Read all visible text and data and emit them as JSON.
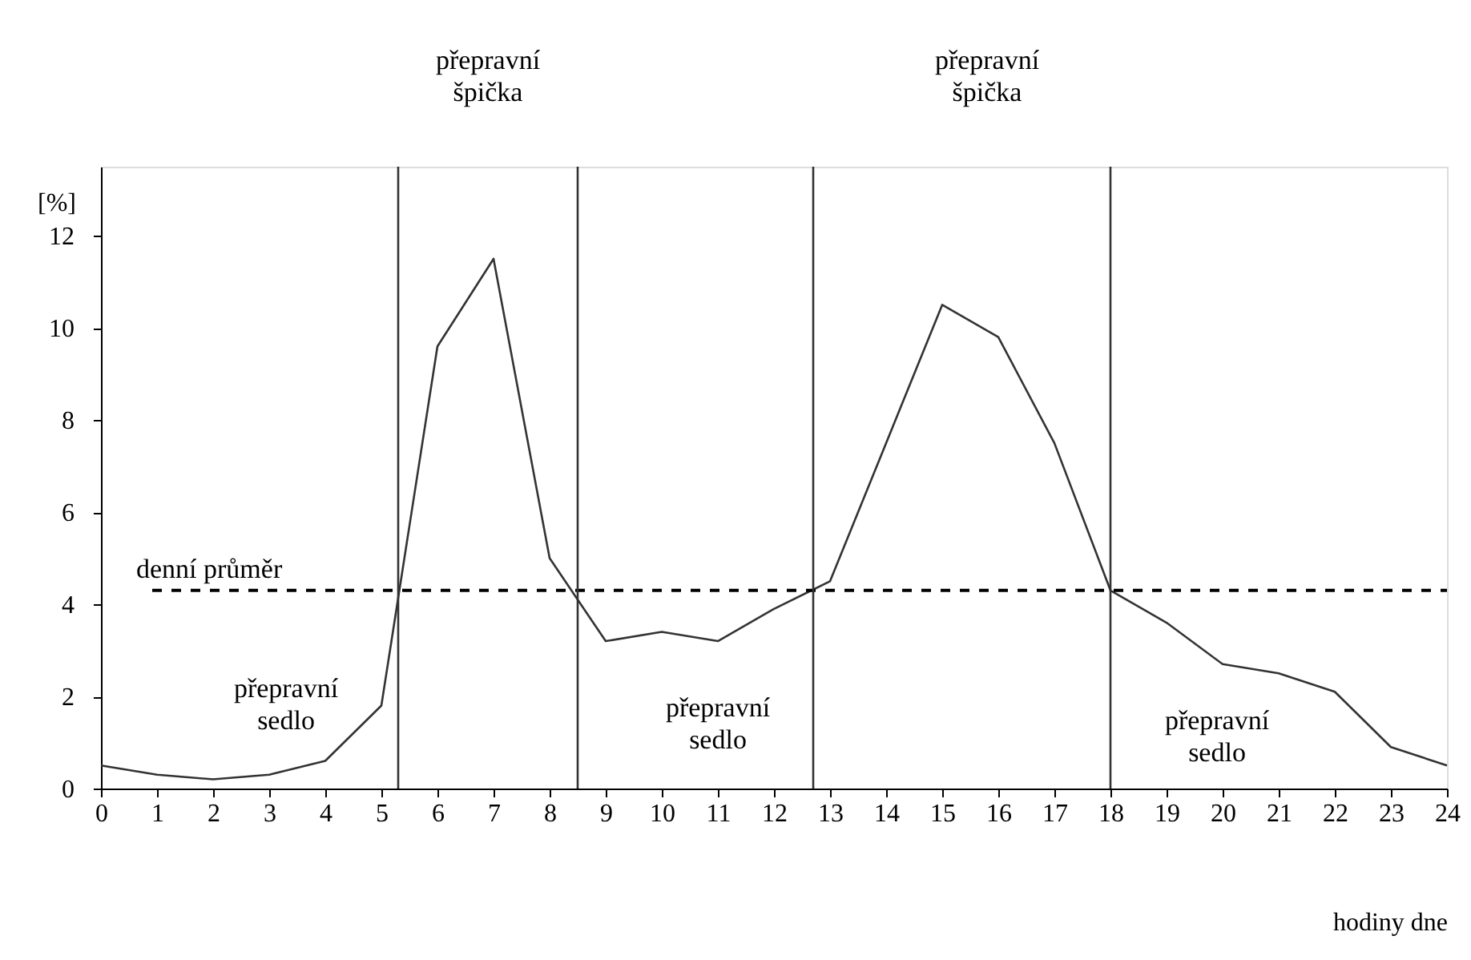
{
  "chart_data": {
    "type": "line",
    "x": [
      0,
      1,
      2,
      3,
      4,
      5,
      6,
      7,
      8,
      9,
      10,
      11,
      12,
      13,
      14,
      15,
      16,
      17,
      18,
      19,
      20,
      21,
      22,
      23,
      24
    ],
    "series": [
      {
        "color": "#333333",
        "values": [
          0.5,
          0.3,
          0.2,
          0.3,
          0.6,
          1.8,
          9.6,
          11.5,
          5.0,
          3.2,
          3.4,
          3.2,
          3.9,
          4.5,
          7.5,
          10.5,
          9.8,
          7.5,
          4.3,
          3.6,
          2.7,
          2.5,
          2.1,
          0.9,
          0.5
        ]
      }
    ],
    "xlim": [
      0,
      24
    ],
    "xticks": [
      0,
      1,
      2,
      3,
      4,
      5,
      6,
      7,
      8,
      9,
      10,
      11,
      12,
      13,
      14,
      15,
      16,
      17,
      18,
      19,
      20,
      21,
      22,
      23,
      24
    ],
    "ylim": [
      0,
      13.5
    ],
    "yticks": [
      0,
      2,
      4,
      6,
      8,
      10,
      12
    ],
    "xlabel": "hodiny dne",
    "ylabel": "[%]",
    "grid": false,
    "legend": false,
    "marker": "none",
    "line_style": "solid",
    "ref_lines": [
      {
        "axis": "y",
        "value": 4.3,
        "label": "denní průměr",
        "line_style": "dashed",
        "color": "#000000"
      },
      {
        "axis": "x",
        "value": 5.3,
        "color": "#333333"
      },
      {
        "axis": "x",
        "value": 8.5,
        "color": "#333333"
      },
      {
        "axis": "x",
        "value": 12.7,
        "color": "#333333"
      },
      {
        "axis": "x",
        "value": 18.0,
        "color": "#333333"
      }
    ],
    "annotations": [
      "přepravní špička",
      "přepravní špička",
      "přepravní sedlo",
      "přepravní sedlo",
      "přepravní sedlo"
    ]
  }
}
